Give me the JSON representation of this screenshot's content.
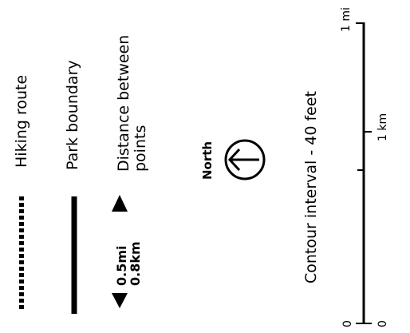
{
  "legend": {
    "hiking_route": {
      "label": "Hiking route"
    },
    "park_boundary": {
      "label": "Park boundary"
    },
    "distance": {
      "label_line1": "Distance between",
      "label_line2": "points",
      "value_mi": "0.5mi",
      "value_km": "0.8km"
    },
    "north": {
      "label": "North",
      "icon": "north-arrow-icon"
    },
    "contour": {
      "label": "Contour interval - 40 feet"
    },
    "scale": {
      "mi_zero": "0",
      "mi_max": "1 mi",
      "km_zero": "0",
      "km_one": "1 km"
    }
  }
}
